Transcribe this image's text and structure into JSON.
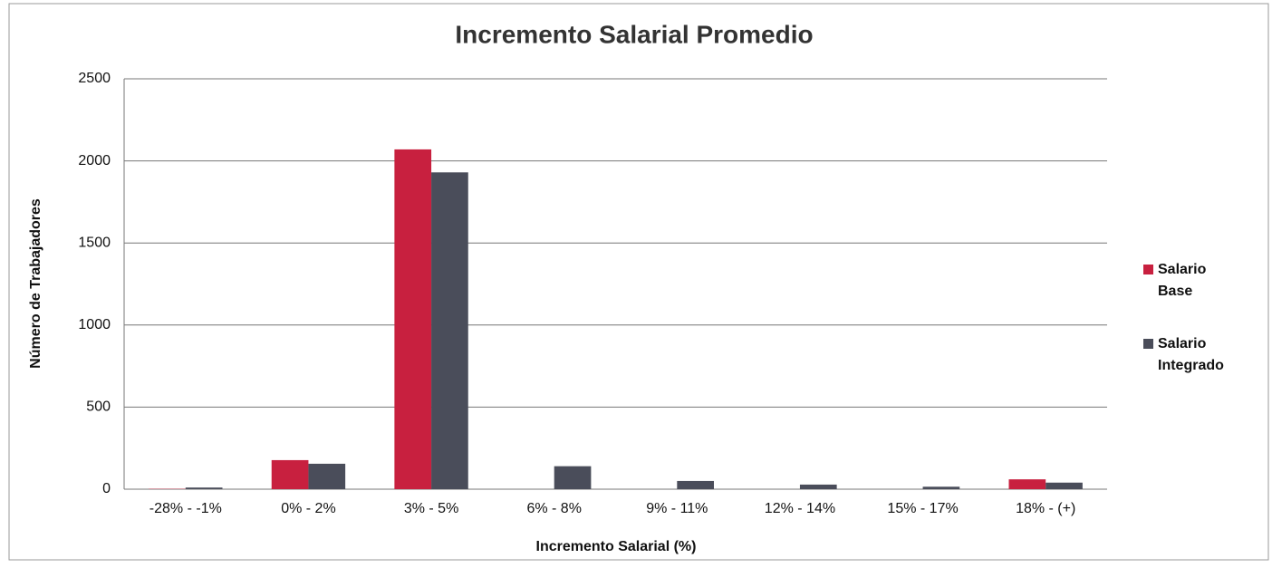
{
  "chart_data": {
    "type": "bar",
    "title": "Incremento Salarial Promedio",
    "x_label": "Incremento Salarial  (%)",
    "y_label": "Número  de  Trabajadores",
    "categories": [
      "-28% - -1%",
      "0% - 2%",
      "3% - 5%",
      "6% - 8%",
      "9% - 11%",
      "12% - 14%",
      "15% - 17%",
      "18% - (+)"
    ],
    "series": [
      {
        "name": "Salario Base",
        "color": "#c8203f",
        "values": [
          2,
          177,
          2070,
          0,
          0,
          0,
          0,
          60
        ]
      },
      {
        "name": "Salario Integrado",
        "color": "#4a4d5a",
        "values": [
          10,
          155,
          1930,
          140,
          50,
          28,
          15,
          40
        ]
      }
    ],
    "ylim": [
      0,
      2500
    ],
    "yticks": [
      0,
      500,
      1000,
      1500,
      2000,
      2500
    ],
    "grid": true,
    "legend": "right"
  }
}
